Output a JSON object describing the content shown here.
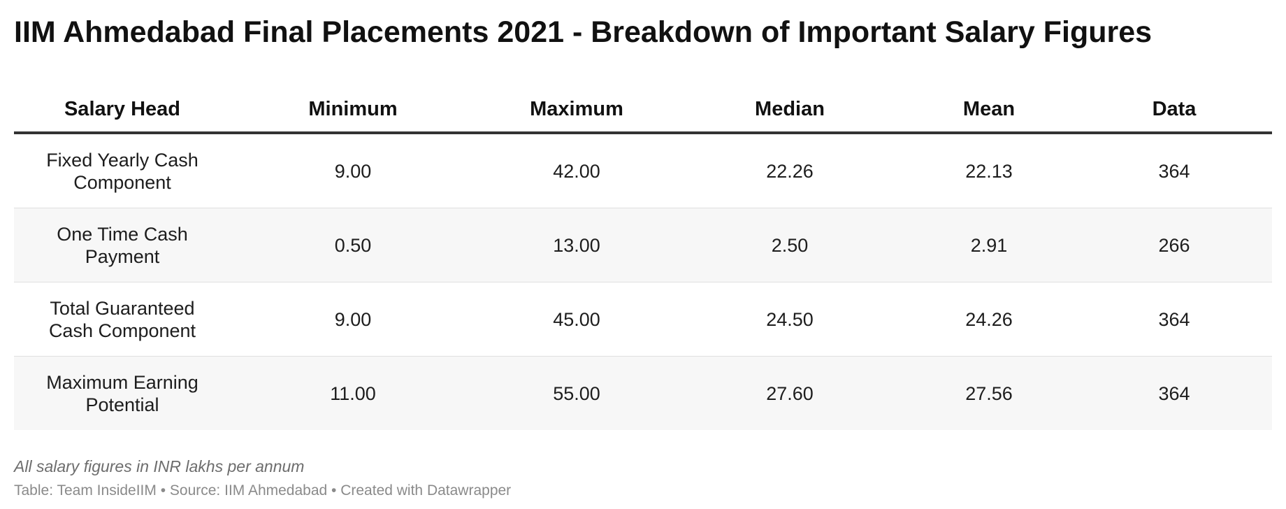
{
  "chart_data": {
    "type": "table",
    "title": "IIM Ahmedabad Final Placements 2021 - Breakdown of Important Salary Figures",
    "columns": [
      "Salary Head",
      "Minimum",
      "Maximum",
      "Median",
      "Mean",
      "Data"
    ],
    "rows": [
      [
        "Fixed Yearly Cash Component",
        "9.00",
        "42.00",
        "22.26",
        "22.13",
        "364"
      ],
      [
        "One Time Cash Payment",
        "0.50",
        "13.00",
        "2.50",
        "2.91",
        "266"
      ],
      [
        "Total Guaranteed Cash Component",
        "9.00",
        "45.00",
        "24.50",
        "24.26",
        "364"
      ],
      [
        "Maximum Earning Potential",
        "11.00",
        "55.00",
        "27.60",
        "27.56",
        "364"
      ]
    ],
    "notes": "All salary figures in INR lakhs per annum",
    "footer": "Table: Team InsideIIM • Source: IIM Ahmedabad • Created with Datawrapper"
  },
  "colors": {
    "header_rule": "#333333",
    "row_alt_background": "#f7f7f7",
    "row_divider": "#e0e0e0",
    "notes_text": "#6d6d6d",
    "footer_text": "#8a8a8a"
  }
}
